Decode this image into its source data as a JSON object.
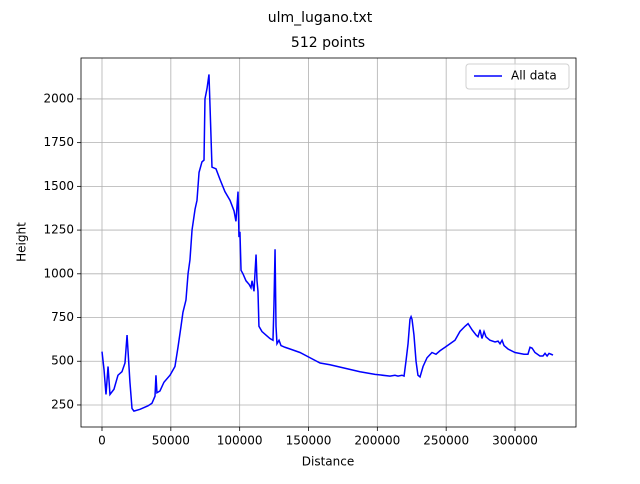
{
  "chart_data": {
    "type": "line",
    "suptitle": "ulm_lugano.txt",
    "title": "512 points",
    "x_label": "Distance",
    "y_label": "Height",
    "xlim": [
      -15250,
      344300
    ],
    "ylim": [
      124,
      2234
    ],
    "xticks": [
      0,
      50000,
      100000,
      150000,
      200000,
      250000,
      300000
    ],
    "yticks": [
      250,
      500,
      750,
      1000,
      1250,
      1500,
      1750,
      2000
    ],
    "grid": true,
    "legend": "upper right",
    "series": [
      {
        "name": "All data",
        "color": "blue",
        "x": [
          0,
          1500,
          2900,
          4400,
          5800,
          8700,
          11600,
          14500,
          16700,
          18200,
          18900,
          20300,
          21800,
          23200,
          27600,
          33400,
          36300,
          38500,
          39200,
          39900,
          42100,
          45000,
          49400,
          53000,
          55200,
          57400,
          58800,
          61000,
          62500,
          63900,
          65400,
          67600,
          69000,
          70500,
          72600,
          74100,
          74800,
          76300,
          77700,
          78500,
          79900,
          82800,
          85700,
          89300,
          93000,
          95900,
          97300,
          98800,
          99500,
          100200,
          101000,
          102400,
          104600,
          106800,
          108200,
          109000,
          110400,
          111900,
          112600,
          113300,
          114000,
          116200,
          119100,
          122000,
          124200,
          124900,
          125700,
          126400,
          127100,
          128600,
          130000,
          132900,
          136600,
          143800,
          151100,
          158400,
          165600,
          176500,
          187400,
          198300,
          209200,
          212800,
          215000,
          217900,
          219400,
          220800,
          222300,
          223700,
          224500,
          225200,
          226600,
          228100,
          229500,
          231000,
          233200,
          236100,
          239700,
          242600,
          245500,
          249200,
          252800,
          256400,
          260000,
          263700,
          265900,
          268800,
          271700,
          273100,
          274600,
          276000,
          277500,
          278900,
          281800,
          285500,
          287700,
          289100,
          290600,
          292000,
          294900,
          300000,
          306500,
          309400,
          310900,
          312400,
          314500,
          318100,
          320300,
          321800,
          323300,
          324700,
          326200,
          327600
        ],
        "values": [
          555,
          450,
          310,
          470,
          310,
          340,
          420,
          440,
          490,
          650,
          560,
          380,
          230,
          215,
          225,
          245,
          260,
          300,
          420,
          320,
          330,
          380,
          420,
          470,
          580,
          700,
          780,
          850,
          1000,
          1080,
          1250,
          1370,
          1420,
          1580,
          1640,
          1650,
          2000,
          2060,
          2140,
          1950,
          1610,
          1600,
          1540,
          1470,
          1420,
          1360,
          1300,
          1470,
          1210,
          1240,
          1020,
          1000,
          960,
          940,
          920,
          960,
          900,
          1110,
          960,
          900,
          700,
          670,
          650,
          630,
          620,
          820,
          1140,
          700,
          600,
          620,
          590,
          580,
          570,
          550,
          520,
          490,
          480,
          460,
          440,
          425,
          415,
          420,
          415,
          420,
          415,
          500,
          600,
          740,
          755,
          740,
          650,
          500,
          420,
          410,
          470,
          520,
          550,
          540,
          560,
          580,
          600,
          620,
          670,
          700,
          715,
          680,
          650,
          640,
          680,
          630,
          670,
          640,
          620,
          610,
          615,
          600,
          620,
          590,
          570,
          550,
          540,
          540,
          580,
          575,
          550,
          530,
          530,
          545,
          530,
          545,
          540,
          535
        ]
      }
    ]
  }
}
